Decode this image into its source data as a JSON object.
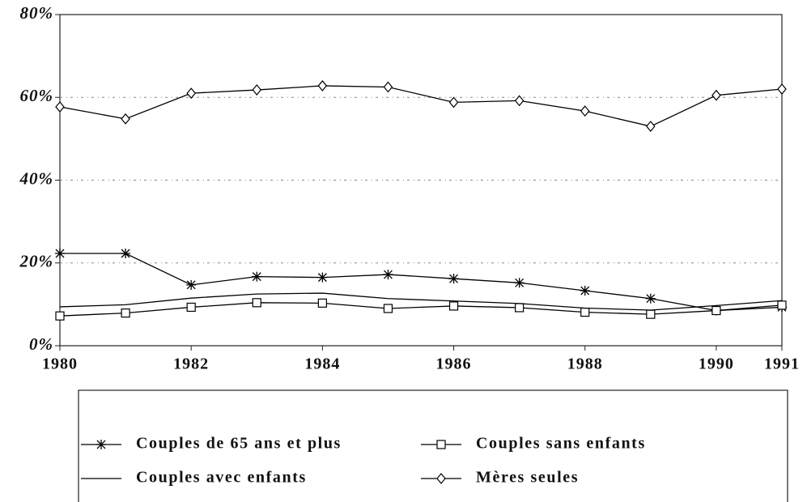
{
  "chart_data": {
    "type": "line",
    "x": [
      1980,
      1981,
      1982,
      1983,
      1984,
      1985,
      1986,
      1987,
      1988,
      1989,
      1990,
      1991
    ],
    "xlim": [
      1980,
      1991
    ],
    "xticks": [
      1980,
      1982,
      1984,
      1986,
      1988,
      1990,
      1991
    ],
    "ylim": [
      0,
      80
    ],
    "yticks": [
      {
        "value": 0,
        "label": "0%"
      },
      {
        "value": 20,
        "label": "20%"
      },
      {
        "value": 40,
        "label": "40%"
      },
      {
        "value": 60,
        "label": "60%"
      },
      {
        "value": 80,
        "label": "80%"
      }
    ],
    "grid": true,
    "legend": "bottom",
    "series": [
      {
        "name": "Couples de 65 ans et plus",
        "color": "#000000",
        "marker": "star",
        "values": [
          22.3,
          22.3,
          14.7,
          16.7,
          16.5,
          17.2,
          16.2,
          15.2,
          13.3,
          11.4,
          8.5,
          9.3
        ]
      },
      {
        "name": "Couples sans enfants",
        "color": "#000000",
        "marker": "square",
        "values": [
          7.2,
          7.9,
          9.3,
          10.4,
          10.3,
          9.0,
          9.6,
          9.2,
          8.1,
          7.6,
          8.5,
          9.8
        ]
      },
      {
        "name": "Couples avec enfants",
        "color": "#000000",
        "marker": "none",
        "values": [
          9.4,
          9.9,
          11.5,
          12.5,
          12.7,
          11.4,
          10.8,
          10.2,
          9.1,
          8.6,
          9.7,
          10.9
        ]
      },
      {
        "name": "Mères seules",
        "color": "#000000",
        "marker": "diamond",
        "values": [
          57.7,
          54.8,
          61.0,
          61.8,
          62.8,
          62.5,
          58.8,
          59.2,
          56.7,
          53.0,
          60.5,
          62.0
        ]
      }
    ]
  }
}
